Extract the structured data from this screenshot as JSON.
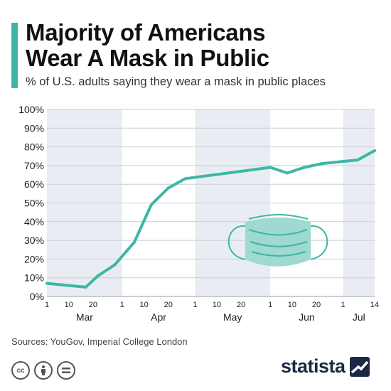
{
  "header": {
    "title_line1": "Majority of Americans",
    "title_line2": "Wear A Mask in Public",
    "subtitle": "% of U.S. adults saying they wear a mask in public places"
  },
  "colors": {
    "accent": "#3cb7a6",
    "line": "#3cb7a6",
    "band_shaded": "#e9edf3",
    "grid": "#c9ced6",
    "text": "#1f1f1f",
    "brand": "#1b2a44"
  },
  "chart_data": {
    "type": "line",
    "title": "Majority of Americans Wear A Mask in Public",
    "subtitle": "% of U.S. adults saying they wear a mask in public places",
    "xlabel": "",
    "ylabel": "",
    "x_range": [
      "2020-03-01",
      "2020-07-14"
    ],
    "ylim": [
      0,
      100
    ],
    "y_ticks": [
      0,
      10,
      20,
      30,
      40,
      50,
      60,
      70,
      80,
      90,
      100
    ],
    "y_tick_labels": [
      "0%",
      "10%",
      "20%",
      "30%",
      "40%",
      "50%",
      "60%",
      "70%",
      "80%",
      "90%",
      "100%"
    ],
    "grid": true,
    "series": [
      {
        "points": [
          {
            "x": "2020-03-01",
            "y": 7
          },
          {
            "x": "2020-03-17",
            "y": 5
          },
          {
            "x": "2020-03-22",
            "y": 11
          },
          {
            "x": "2020-03-29",
            "y": 17
          },
          {
            "x": "2020-04-06",
            "y": 29
          },
          {
            "x": "2020-04-13",
            "y": 49
          },
          {
            "x": "2020-04-20",
            "y": 58
          },
          {
            "x": "2020-04-27",
            "y": 63
          },
          {
            "x": "2020-06-01",
            "y": 69
          },
          {
            "x": "2020-06-08",
            "y": 66
          },
          {
            "x": "2020-06-15",
            "y": 69
          },
          {
            "x": "2020-06-22",
            "y": 71
          },
          {
            "x": "2020-07-07",
            "y": 73
          },
          {
            "x": "2020-07-14",
            "y": 78
          }
        ]
      }
    ],
    "x_day_ticks": [
      {
        "date": "2020-03-01",
        "label": "1"
      },
      {
        "date": "2020-03-10",
        "label": "10"
      },
      {
        "date": "2020-03-20",
        "label": "20"
      },
      {
        "date": "2020-04-01",
        "label": "1"
      },
      {
        "date": "2020-04-10",
        "label": "10"
      },
      {
        "date": "2020-04-20",
        "label": "20"
      },
      {
        "date": "2020-05-01",
        "label": "1"
      },
      {
        "date": "2020-05-10",
        "label": "10"
      },
      {
        "date": "2020-05-20",
        "label": "20"
      },
      {
        "date": "2020-06-01",
        "label": "1"
      },
      {
        "date": "2020-06-10",
        "label": "10"
      },
      {
        "date": "2020-06-20",
        "label": "20"
      },
      {
        "date": "2020-07-01",
        "label": "1"
      },
      {
        "date": "2020-07-14",
        "label": "14"
      }
    ],
    "months": [
      {
        "label": "Mar",
        "start": "2020-03-01",
        "end": "2020-04-01",
        "shaded": true
      },
      {
        "label": "Apr",
        "start": "2020-04-01",
        "end": "2020-05-01",
        "shaded": false
      },
      {
        "label": "May",
        "start": "2020-05-01",
        "end": "2020-06-01",
        "shaded": true
      },
      {
        "label": "Jun",
        "start": "2020-06-01",
        "end": "2020-07-01",
        "shaded": false
      },
      {
        "label": "Jul",
        "start": "2020-07-01",
        "end": "2020-07-14",
        "shaded": true
      }
    ],
    "illustration": "face-mask-icon"
  },
  "footer": {
    "source": "Sources: YouGov, Imperial College London",
    "license_icons": [
      "cc-icon",
      "attribution-icon",
      "no-derivatives-icon"
    ],
    "brand": "statista"
  }
}
